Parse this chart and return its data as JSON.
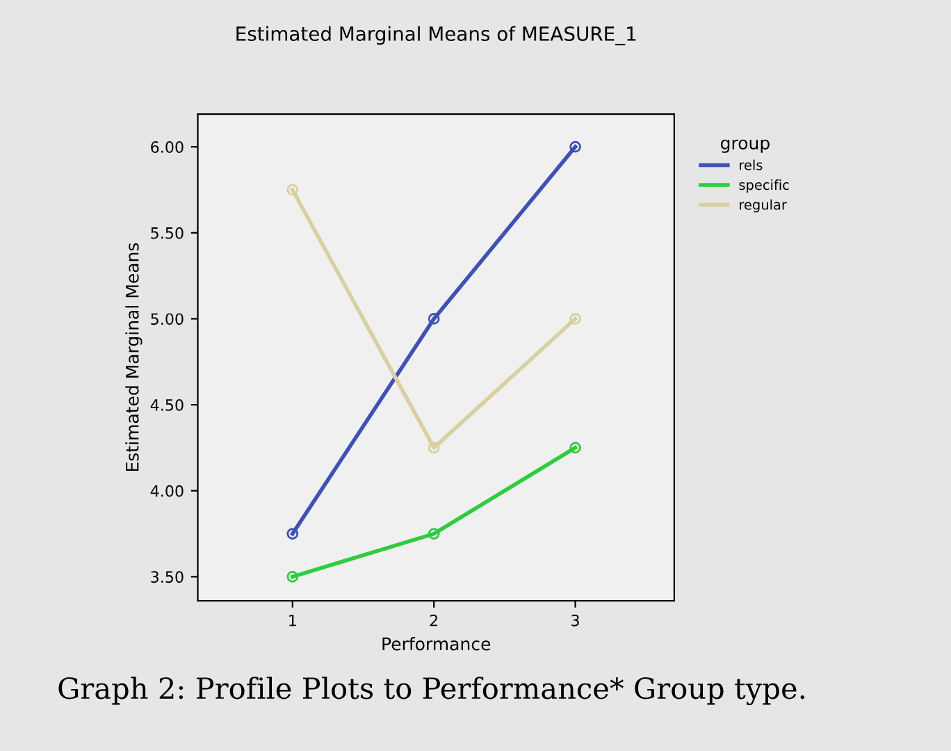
{
  "chart_data": {
    "type": "line",
    "title": "Estimated Marginal Means of MEASURE_1",
    "xlabel": "Performance",
    "ylabel": "Estimated Marginal Means",
    "legend_title": "group",
    "x": [
      1,
      2,
      3
    ],
    "series": [
      {
        "name": "rels",
        "color": "#3f51b5",
        "values": [
          3.75,
          5.0,
          6.0
        ]
      },
      {
        "name": "specific",
        "color": "#2ecc40",
        "values": [
          3.5,
          3.75,
          4.25
        ]
      },
      {
        "name": "regular",
        "color": "#d8d0a0",
        "values": [
          5.75,
          4.25,
          5.0
        ]
      }
    ],
    "xlim": [
      0.33,
      3.7
    ],
    "xticks": [
      1,
      2,
      3
    ],
    "ylim": [
      3.36,
      6.19
    ],
    "yticks": [
      {
        "value": 3.5,
        "label": "3.50"
      },
      {
        "value": 4.0,
        "label": "4.00"
      },
      {
        "value": 4.5,
        "label": "4.50"
      },
      {
        "value": 5.0,
        "label": "5.00"
      },
      {
        "value": 5.5,
        "label": "5.50"
      },
      {
        "value": 6.0,
        "label": "6.00"
      }
    ],
    "marker": "circle",
    "line_style": "solid",
    "grid": false,
    "legend": "right",
    "annotations": [
      "Graph 2: Profile Plots to Performance* Group type."
    ]
  }
}
